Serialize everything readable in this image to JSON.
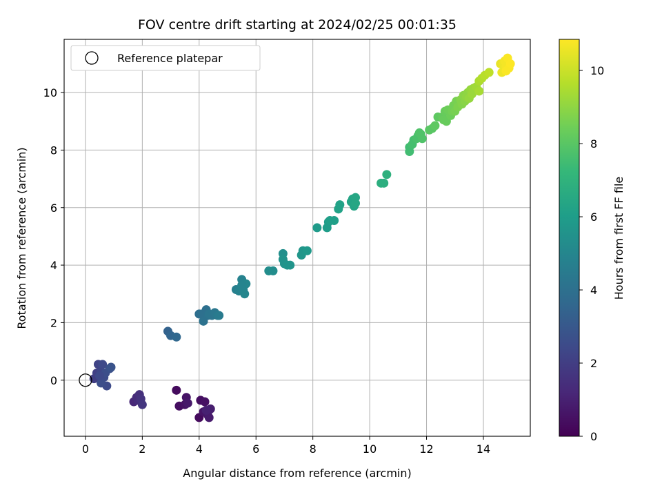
{
  "chart_data": {
    "type": "scatter",
    "title": "FOV centre drift starting at 2024/02/25 00:01:35",
    "xlabel": "Angular distance from reference (arcmin)",
    "ylabel": "Rotation from reference (arcmin)",
    "xlim": [
      -0.75,
      15.65
    ],
    "ylim": [
      -1.95,
      11.85
    ],
    "xticks": [
      0,
      2,
      4,
      6,
      8,
      10,
      12,
      14
    ],
    "yticks": [
      0,
      2,
      4,
      6,
      8,
      10
    ],
    "grid": true,
    "legend": {
      "placement": "upper-left",
      "entries": [
        "Reference platepar"
      ]
    },
    "reference_point": {
      "x": 0,
      "y": 0
    },
    "colorbar": {
      "label": "Hours from first FF file",
      "range": [
        0,
        10.85
      ],
      "ticks": [
        0,
        2,
        4,
        6,
        8,
        10
      ],
      "colormap": "viridis",
      "stops": [
        "#440154",
        "#482878",
        "#3e4989",
        "#31688e",
        "#26828e",
        "#1f9e89",
        "#35b779",
        "#6ece58",
        "#b5de2b",
        "#fde725"
      ]
    },
    "points": [
      {
        "x": 3.2,
        "y": -0.35,
        "h": 0.3
      },
      {
        "x": 3.3,
        "y": -0.9,
        "h": 0.4
      },
      {
        "x": 3.5,
        "y": -0.85,
        "h": 0.5
      },
      {
        "x": 3.55,
        "y": -0.6,
        "h": 0.6
      },
      {
        "x": 3.6,
        "y": -0.8,
        "h": 0.7
      },
      {
        "x": 4.0,
        "y": -1.3,
        "h": 0.3
      },
      {
        "x": 4.05,
        "y": -0.7,
        "h": 0.4
      },
      {
        "x": 4.2,
        "y": -0.75,
        "h": 0.5
      },
      {
        "x": 4.15,
        "y": -1.1,
        "h": 0.6
      },
      {
        "x": 4.3,
        "y": -1.2,
        "h": 0.7
      },
      {
        "x": 4.35,
        "y": -1.3,
        "h": 0.8
      },
      {
        "x": 4.4,
        "y": -1.0,
        "h": 0.9
      },
      {
        "x": 4.25,
        "y": -1.05,
        "h": 1.0
      },
      {
        "x": 1.7,
        "y": -0.75,
        "h": 1.2
      },
      {
        "x": 1.8,
        "y": -0.6,
        "h": 1.3
      },
      {
        "x": 1.85,
        "y": -0.7,
        "h": 1.4
      },
      {
        "x": 1.9,
        "y": -0.5,
        "h": 1.5
      },
      {
        "x": 1.95,
        "y": -0.65,
        "h": 1.6
      },
      {
        "x": 2.0,
        "y": -0.85,
        "h": 1.7
      },
      {
        "x": 0.3,
        "y": 0.05,
        "h": 2.0
      },
      {
        "x": 0.4,
        "y": 0.25,
        "h": 2.1
      },
      {
        "x": 0.45,
        "y": 0.55,
        "h": 2.2
      },
      {
        "x": 0.55,
        "y": 0.3,
        "h": 2.3
      },
      {
        "x": 0.6,
        "y": 0.55,
        "h": 2.4
      },
      {
        "x": 0.65,
        "y": 0.1,
        "h": 2.5
      },
      {
        "x": 0.7,
        "y": 0.25,
        "h": 2.6
      },
      {
        "x": 0.75,
        "y": -0.2,
        "h": 2.5
      },
      {
        "x": 0.85,
        "y": 0.4,
        "h": 2.7
      },
      {
        "x": 0.9,
        "y": 0.45,
        "h": 2.8
      },
      {
        "x": 0.55,
        "y": -0.1,
        "h": 2.6
      },
      {
        "x": 0.5,
        "y": 0.15,
        "h": 2.4
      },
      {
        "x": 2.9,
        "y": 1.7,
        "h": 3.4
      },
      {
        "x": 3.0,
        "y": 1.55,
        "h": 3.5
      },
      {
        "x": 3.2,
        "y": 1.5,
        "h": 3.6
      },
      {
        "x": 4.0,
        "y": 2.3,
        "h": 3.9
      },
      {
        "x": 4.1,
        "y": 2.3,
        "h": 4.0
      },
      {
        "x": 4.15,
        "y": 2.05,
        "h": 4.1
      },
      {
        "x": 4.25,
        "y": 2.45,
        "h": 4.0
      },
      {
        "x": 4.3,
        "y": 2.25,
        "h": 4.1
      },
      {
        "x": 4.35,
        "y": 2.3,
        "h": 4.2
      },
      {
        "x": 4.45,
        "y": 2.25,
        "h": 4.2
      },
      {
        "x": 4.55,
        "y": 2.35,
        "h": 4.3
      },
      {
        "x": 4.65,
        "y": 2.25,
        "h": 4.4
      },
      {
        "x": 4.7,
        "y": 2.25,
        "h": 4.5
      },
      {
        "x": 5.3,
        "y": 3.15,
        "h": 4.7
      },
      {
        "x": 5.4,
        "y": 3.1,
        "h": 4.8
      },
      {
        "x": 5.5,
        "y": 3.5,
        "h": 4.8
      },
      {
        "x": 5.55,
        "y": 3.15,
        "h": 4.9
      },
      {
        "x": 5.6,
        "y": 3.0,
        "h": 5.0
      },
      {
        "x": 5.65,
        "y": 3.35,
        "h": 5.0
      },
      {
        "x": 5.5,
        "y": 3.3,
        "h": 4.9
      },
      {
        "x": 6.45,
        "y": 3.8,
        "h": 5.3
      },
      {
        "x": 6.6,
        "y": 3.8,
        "h": 5.3
      },
      {
        "x": 6.95,
        "y": 4.4,
        "h": 5.4
      },
      {
        "x": 6.95,
        "y": 4.2,
        "h": 5.5
      },
      {
        "x": 7.0,
        "y": 4.05,
        "h": 5.5
      },
      {
        "x": 7.1,
        "y": 4.0,
        "h": 5.6
      },
      {
        "x": 7.2,
        "y": 4.0,
        "h": 5.6
      },
      {
        "x": 7.6,
        "y": 4.35,
        "h": 5.7
      },
      {
        "x": 7.65,
        "y": 4.5,
        "h": 5.7
      },
      {
        "x": 7.8,
        "y": 4.5,
        "h": 5.8
      },
      {
        "x": 8.15,
        "y": 5.3,
        "h": 5.9
      },
      {
        "x": 8.5,
        "y": 5.3,
        "h": 6.0
      },
      {
        "x": 8.55,
        "y": 5.5,
        "h": 6.0
      },
      {
        "x": 8.6,
        "y": 5.55,
        "h": 6.1
      },
      {
        "x": 8.75,
        "y": 5.55,
        "h": 6.1
      },
      {
        "x": 8.9,
        "y": 5.95,
        "h": 6.2
      },
      {
        "x": 8.95,
        "y": 6.1,
        "h": 6.2
      },
      {
        "x": 9.35,
        "y": 6.2,
        "h": 6.3
      },
      {
        "x": 9.4,
        "y": 6.3,
        "h": 6.3
      },
      {
        "x": 9.45,
        "y": 6.05,
        "h": 6.3
      },
      {
        "x": 9.5,
        "y": 6.35,
        "h": 6.4
      },
      {
        "x": 9.5,
        "y": 6.15,
        "h": 6.4
      },
      {
        "x": 10.4,
        "y": 6.85,
        "h": 6.8
      },
      {
        "x": 10.5,
        "y": 6.85,
        "h": 6.8
      },
      {
        "x": 10.6,
        "y": 7.15,
        "h": 6.9
      },
      {
        "x": 11.4,
        "y": 7.95,
        "h": 7.5
      },
      {
        "x": 11.4,
        "y": 8.1,
        "h": 7.5
      },
      {
        "x": 11.5,
        "y": 8.2,
        "h": 7.6
      },
      {
        "x": 11.55,
        "y": 8.35,
        "h": 7.6
      },
      {
        "x": 11.65,
        "y": 8.4,
        "h": 7.7
      },
      {
        "x": 11.7,
        "y": 8.5,
        "h": 7.7
      },
      {
        "x": 11.75,
        "y": 8.6,
        "h": 7.8
      },
      {
        "x": 11.8,
        "y": 8.55,
        "h": 7.8
      },
      {
        "x": 11.85,
        "y": 8.4,
        "h": 7.8
      },
      {
        "x": 12.1,
        "y": 8.7,
        "h": 8.0
      },
      {
        "x": 12.2,
        "y": 8.75,
        "h": 8.0
      },
      {
        "x": 12.3,
        "y": 8.85,
        "h": 8.1
      },
      {
        "x": 12.4,
        "y": 9.15,
        "h": 8.1
      },
      {
        "x": 12.55,
        "y": 9.15,
        "h": 8.2
      },
      {
        "x": 12.6,
        "y": 9.05,
        "h": 8.3
      },
      {
        "x": 12.65,
        "y": 9.35,
        "h": 8.3
      },
      {
        "x": 12.7,
        "y": 9.0,
        "h": 8.3
      },
      {
        "x": 12.75,
        "y": 9.4,
        "h": 8.4
      },
      {
        "x": 12.85,
        "y": 9.2,
        "h": 8.4
      },
      {
        "x": 12.9,
        "y": 9.35,
        "h": 8.5
      },
      {
        "x": 12.95,
        "y": 9.55,
        "h": 8.5
      },
      {
        "x": 13.0,
        "y": 9.35,
        "h": 8.6
      },
      {
        "x": 13.05,
        "y": 9.7,
        "h": 8.6
      },
      {
        "x": 13.1,
        "y": 9.5,
        "h": 8.7
      },
      {
        "x": 13.2,
        "y": 9.75,
        "h": 8.8
      },
      {
        "x": 13.25,
        "y": 9.6,
        "h": 8.8
      },
      {
        "x": 13.3,
        "y": 9.9,
        "h": 8.9
      },
      {
        "x": 13.35,
        "y": 9.7,
        "h": 8.9
      },
      {
        "x": 13.4,
        "y": 9.85,
        "h": 9.0
      },
      {
        "x": 13.45,
        "y": 10.0,
        "h": 9.0
      },
      {
        "x": 13.5,
        "y": 9.8,
        "h": 9.1
      },
      {
        "x": 13.55,
        "y": 10.1,
        "h": 9.1
      },
      {
        "x": 13.6,
        "y": 9.95,
        "h": 9.2
      },
      {
        "x": 13.65,
        "y": 10.15,
        "h": 9.2
      },
      {
        "x": 13.75,
        "y": 10.2,
        "h": 9.3
      },
      {
        "x": 13.85,
        "y": 10.05,
        "h": 9.4
      },
      {
        "x": 13.85,
        "y": 10.4,
        "h": 9.5
      },
      {
        "x": 13.95,
        "y": 10.5,
        "h": 9.6
      },
      {
        "x": 14.05,
        "y": 10.6,
        "h": 9.7
      },
      {
        "x": 14.2,
        "y": 10.7,
        "h": 9.8
      },
      {
        "x": 14.6,
        "y": 11.0,
        "h": 10.5
      },
      {
        "x": 14.65,
        "y": 10.7,
        "h": 10.6
      },
      {
        "x": 14.7,
        "y": 11.0,
        "h": 10.6
      },
      {
        "x": 14.75,
        "y": 11.1,
        "h": 10.7
      },
      {
        "x": 14.8,
        "y": 10.9,
        "h": 10.7
      },
      {
        "x": 14.85,
        "y": 11.2,
        "h": 10.8
      },
      {
        "x": 14.9,
        "y": 10.85,
        "h": 10.8
      },
      {
        "x": 14.95,
        "y": 11.0,
        "h": 10.85
      },
      {
        "x": 14.8,
        "y": 10.75,
        "h": 10.8
      }
    ]
  }
}
